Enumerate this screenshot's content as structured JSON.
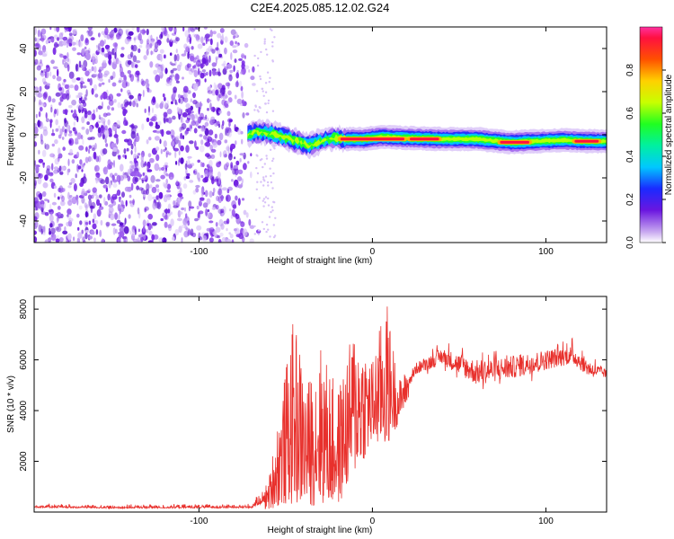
{
  "colors": {
    "snr_line": "#e8302c",
    "noise_purple": "#6a16e0",
    "frame": "#000000"
  },
  "chart_data": [
    {
      "type": "heatmap",
      "title": "C2E4.2025.085.12.02.G24",
      "xlabel": "Height of straight line (km)",
      "ylabel": "Frequency (Hz)",
      "xlim": [
        -195,
        135
      ],
      "ylim": [
        -50,
        50
      ],
      "x_ticks": [
        -100,
        0,
        100
      ],
      "y_ticks": [
        -40,
        -20,
        0,
        20,
        40
      ],
      "colorbar": {
        "label": "Normalized spectral amplitude",
        "range": [
          0.0,
          1.0
        ],
        "ticks": [
          "0.0",
          "0.2",
          "0.4",
          "0.6",
          "0.8"
        ]
      },
      "noise_region_x": [
        -195,
        -65
      ],
      "signal_ridge": [
        {
          "x": -72,
          "y": 0.0
        },
        {
          "x": -66,
          "y": 1.5
        },
        {
          "x": -58,
          "y": 0.5
        },
        {
          "x": -50,
          "y": -1.5
        },
        {
          "x": -42,
          "y": -3.5
        },
        {
          "x": -36,
          "y": -5.0
        },
        {
          "x": -30,
          "y": -3.0
        },
        {
          "x": -24,
          "y": -1.5
        },
        {
          "x": -16,
          "y": -2.0
        },
        {
          "x": -5,
          "y": -2.0
        },
        {
          "x": 5,
          "y": -1.0
        },
        {
          "x": 20,
          "y": -1.5
        },
        {
          "x": 40,
          "y": -2.0
        },
        {
          "x": 60,
          "y": -2.0
        },
        {
          "x": 80,
          "y": -3.5
        },
        {
          "x": 95,
          "y": -3.0
        },
        {
          "x": 110,
          "y": -2.5
        },
        {
          "x": 125,
          "y": -3.0
        },
        {
          "x": 135,
          "y": -3.0
        }
      ],
      "strong_segments": [
        {
          "x": [
            -20,
            20
          ],
          "y": -2.0,
          "amplitude": 0.95
        },
        {
          "x": [
            20,
            40
          ],
          "y": -2.0,
          "amplitude": 0.98
        },
        {
          "x": [
            72,
            92
          ],
          "y": -3.5,
          "amplitude": 0.97
        },
        {
          "x": [
            115,
            132
          ],
          "y": -3.0,
          "amplitude": 0.95
        }
      ],
      "grid": false,
      "legend": "colorbar-right"
    },
    {
      "type": "line",
      "xlabel": "Height of straight line (km)",
      "ylabel": "SNR (10 * v/v)",
      "xlim": [
        -195,
        135
      ],
      "ylim": [
        0,
        8500
      ],
      "x_ticks": [
        -100,
        0,
        100
      ],
      "y_ticks": [
        2000,
        4000,
        6000,
        8000
      ],
      "series_envelope": [
        {
          "x": -195,
          "y_low": 100,
          "y_high": 350
        },
        {
          "x": -150,
          "y_low": 80,
          "y_high": 300
        },
        {
          "x": -100,
          "y_low": 80,
          "y_high": 330
        },
        {
          "x": -70,
          "y_low": 80,
          "y_high": 350
        },
        {
          "x": -60,
          "y_low": 100,
          "y_high": 1200
        },
        {
          "x": -55,
          "y_low": 200,
          "y_high": 3500
        },
        {
          "x": -45,
          "y_low": 300,
          "y_high": 7800
        },
        {
          "x": -38,
          "y_low": 200,
          "y_high": 5000
        },
        {
          "x": -30,
          "y_low": 300,
          "y_high": 6700
        },
        {
          "x": -20,
          "y_low": 200,
          "y_high": 4800
        },
        {
          "x": -10,
          "y_low": 1500,
          "y_high": 7500
        },
        {
          "x": 0,
          "y_low": 2600,
          "y_high": 6000
        },
        {
          "x": 8,
          "y_low": 2500,
          "y_high": 8500
        },
        {
          "x": 15,
          "y_low": 3500,
          "y_high": 5200
        },
        {
          "x": 25,
          "y_low": 5200,
          "y_high": 6100
        },
        {
          "x": 40,
          "y_low": 5500,
          "y_high": 6800
        },
        {
          "x": 60,
          "y_low": 4500,
          "y_high": 6500
        },
        {
          "x": 80,
          "y_low": 4800,
          "y_high": 6600
        },
        {
          "x": 100,
          "y_low": 5200,
          "y_high": 6800
        },
        {
          "x": 115,
          "y_low": 5500,
          "y_high": 6900
        },
        {
          "x": 125,
          "y_low": 5000,
          "y_high": 6300
        },
        {
          "x": 135,
          "y_low": 5100,
          "y_high": 5800
        }
      ],
      "grid": false
    }
  ]
}
